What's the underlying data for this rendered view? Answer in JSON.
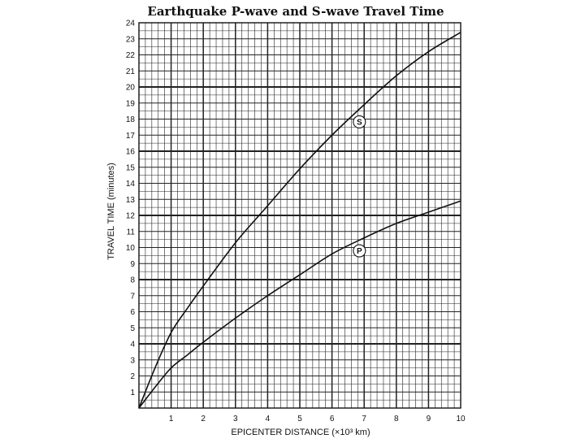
{
  "chart_data": {
    "type": "line",
    "title": "Earthquake P-wave and S-wave Travel Time",
    "xlabel": "EPICENTER DISTANCE (×10³ km)",
    "ylabel": "TRAVEL TIME (minutes)",
    "xlim": [
      0,
      10
    ],
    "ylim": [
      0,
      24
    ],
    "grid": true,
    "x_ticks": [
      "1",
      "2",
      "3",
      "4",
      "5",
      "6",
      "7",
      "8",
      "9",
      "10"
    ],
    "y_ticks": [
      "1",
      "2",
      "3",
      "4",
      "5",
      "6",
      "7",
      "8",
      "9",
      "10",
      "11",
      "12",
      "13",
      "14",
      "15",
      "16",
      "17",
      "18",
      "19",
      "20",
      "21",
      "22",
      "23",
      "24"
    ],
    "series": [
      {
        "name": "S",
        "x": [
          0,
          0.5,
          1,
          1.5,
          2,
          3,
          4,
          5,
          6,
          7,
          8,
          9,
          10
        ],
        "y": [
          0,
          2.5,
          4.7,
          6.2,
          7.6,
          10.3,
          12.6,
          14.9,
          17.0,
          18.9,
          20.7,
          22.2,
          23.4
        ]
      },
      {
        "name": "P",
        "x": [
          0,
          0.5,
          1,
          1.5,
          2,
          3,
          4,
          5,
          6,
          7,
          8,
          9,
          10
        ],
        "y": [
          0,
          1.3,
          2.5,
          3.3,
          4.1,
          5.6,
          7.0,
          8.3,
          9.6,
          10.6,
          11.5,
          12.2,
          12.9
        ]
      }
    ]
  }
}
